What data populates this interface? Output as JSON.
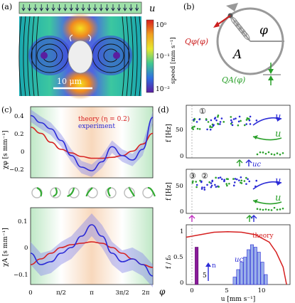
{
  "panel_labels": {
    "a": "(a)",
    "b": "(b)",
    "c": "(c)",
    "d": "(d)"
  },
  "panel_a": {
    "flow_label": "u",
    "scale_bar": "10 μm",
    "colorbar": {
      "ticks": [
        "10⁰",
        "10⁻¹",
        "10⁻²"
      ],
      "label": "speed [mm s⁻¹]"
    }
  },
  "panel_b": {
    "phi": "φ",
    "A": "A",
    "Q_phi": "Qφ(φ)",
    "Q_A": "QA(φ)",
    "colors": {
      "Q_phi": "#cc1f1f",
      "Q_A": "#2aa02a"
    }
  },
  "panel_c": {
    "legend_theory": "theory (η = 0.2)",
    "legend_experiment": "experiment",
    "top": {
      "ylabel": "χφ [s mm⁻¹]",
      "ylim": [
        -0.3,
        0.5
      ],
      "yticks": [
        "0.4",
        "0.2",
        "0",
        "−0.2"
      ]
    },
    "bottom": {
      "ylabel": "χA [s mm⁻¹]",
      "ylim": [
        -0.13,
        0.14
      ],
      "yticks": [
        "0.1",
        "0",
        "−0.1"
      ]
    },
    "xlabel": "φ",
    "xticks": [
      "0",
      "π/2",
      "π",
      "3π/2",
      "2π"
    ],
    "colors": {
      "theory": "#d62020",
      "experiment": "#2b2bd6"
    }
  },
  "panel_d": {
    "top": {
      "circle": "①",
      "ylabel": "f [Hz]",
      "yticks": [
        "50",
        "0"
      ],
      "u_blue": "u",
      "u_green": "u",
      "uc": "uc"
    },
    "middle": {
      "circles": [
        "③",
        "②"
      ],
      "ylabel": "f [Hz]",
      "yticks": [
        "50",
        "0"
      ],
      "u_blue": "u",
      "u_green": "u"
    },
    "bottom": {
      "ylabel": "f / f₀",
      "yticks": [
        "1",
        "0.5",
        "0"
      ],
      "theory": "theory",
      "n_label": "n",
      "n_value": "5",
      "uc": "uc",
      "xlabel": "u [mm s⁻¹]",
      "xticks": [
        "0",
        "5",
        "10"
      ]
    }
  },
  "chart_data": [
    {
      "type": "line",
      "title": "",
      "xlabel": "φ",
      "ylabel": "χφ [s mm⁻¹]",
      "ylim": [
        -0.3,
        0.5
      ],
      "x": [
        0,
        0.524,
        1.047,
        1.571,
        2.094,
        2.618,
        3.142,
        3.665,
        4.189,
        4.712,
        5.236,
        5.76,
        6.283
      ],
      "series": [
        {
          "name": "theory (η = 0.2)",
          "values": [
            0.27,
            0.2,
            0.1,
            0.02,
            -0.02,
            -0.06,
            -0.08,
            -0.08,
            -0.07,
            -0.05,
            0.0,
            0.08,
            0.2
          ]
        },
        {
          "name": "experiment",
          "values": [
            0.4,
            0.32,
            0.25,
            0.12,
            -0.05,
            -0.18,
            -0.22,
            -0.12,
            0.05,
            -0.05,
            -0.1,
            0.02,
            0.38
          ]
        }
      ]
    },
    {
      "type": "line",
      "title": "",
      "xlabel": "φ",
      "ylabel": "χA [s mm⁻¹]",
      "ylim": [
        -0.13,
        0.14
      ],
      "x": [
        0,
        0.524,
        1.047,
        1.571,
        2.094,
        2.618,
        3.142,
        3.665,
        4.189,
        4.712,
        5.236,
        5.76,
        6.283
      ],
      "series": [
        {
          "name": "theory (η = 0.2)",
          "values": [
            -0.06,
            -0.04,
            -0.02,
            0.0,
            0.01,
            0.015,
            0.02,
            0.015,
            0.0,
            -0.02,
            -0.04,
            -0.06,
            -0.07
          ]
        },
        {
          "name": "experiment",
          "values": [
            -0.02,
            -0.06,
            -0.05,
            -0.02,
            0.0,
            0.04,
            0.08,
            0.04,
            -0.02,
            -0.05,
            -0.04,
            -0.06,
            -0.1
          ]
        }
      ]
    },
    {
      "type": "bar",
      "title": "",
      "xlabel": "u [mm s⁻¹]",
      "ylabel": "f / f₀",
      "xlim": [
        -2,
        13
      ],
      "ylim": [
        0,
        1.2
      ],
      "categories": [
        -0.5,
        5.0,
        5.5,
        6.0,
        6.5,
        7.0,
        7.5,
        8.0,
        8.5,
        9.0,
        9.5
      ],
      "series": [
        {
          "name": "n",
          "values": [
            0.75,
            0.15,
            0.3,
            0.45,
            0.55,
            0.7,
            0.8,
            0.75,
            0.65,
            0.45,
            0.2
          ]
        }
      ],
      "theory_curve": {
        "u": [
          -2,
          0,
          2,
          4,
          6,
          8,
          10,
          11,
          12,
          12.5
        ],
        "f": [
          0.95,
          1.0,
          1.05,
          1.06,
          1.05,
          1.0,
          0.85,
          0.65,
          0.35,
          0.0
        ]
      }
    }
  ]
}
